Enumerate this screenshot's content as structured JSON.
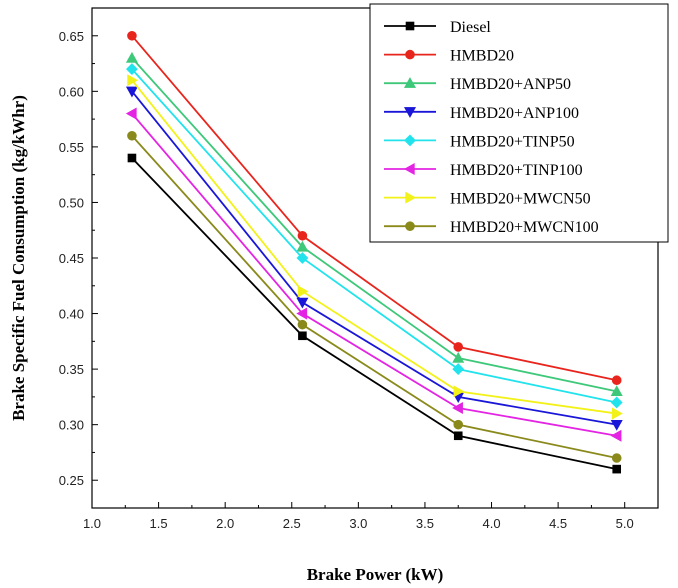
{
  "chart_data": {
    "type": "line",
    "title": "",
    "xlabel": "Brake Power (kW)",
    "ylabel": "Brake Specific Fuel Consumption (kg/kWhr)",
    "xlim": [
      1.0,
      5.25
    ],
    "ylim": [
      0.225,
      0.675
    ],
    "xticks": [
      1.0,
      1.5,
      2.0,
      2.5,
      3.0,
      3.5,
      4.0,
      4.5,
      5.0
    ],
    "xtick_labels": [
      "1.0",
      "1.5",
      "2.0",
      "2.5",
      "3.0",
      "3.5",
      "4.0",
      "4.5",
      "5.0"
    ],
    "yticks": [
      0.25,
      0.3,
      0.35,
      0.4,
      0.45,
      0.5,
      0.55,
      0.6,
      0.65
    ],
    "ytick_labels": [
      "0.25",
      "0.30",
      "0.35",
      "0.40",
      "0.45",
      "0.50",
      "0.55",
      "0.60",
      "0.65"
    ],
    "grid": false,
    "legend_position": "top-right",
    "x": [
      1.3,
      2.58,
      3.75,
      4.94
    ],
    "series": [
      {
        "name": "Diesel",
        "values": [
          0.54,
          0.38,
          0.29,
          0.26
        ],
        "color": "#000000",
        "marker": "square"
      },
      {
        "name": "HMBD20",
        "values": [
          0.65,
          0.47,
          0.37,
          0.34
        ],
        "color": "#e8251d",
        "marker": "circle"
      },
      {
        "name": "HMBD20+ANP50",
        "values": [
          0.63,
          0.46,
          0.36,
          0.33
        ],
        "color": "#3ec87a",
        "marker": "triangle-up"
      },
      {
        "name": "HMBD20+ANP100",
        "values": [
          0.6,
          0.41,
          0.325,
          0.3
        ],
        "color": "#1a16d8",
        "marker": "triangle-down"
      },
      {
        "name": "HMBD20+TINP50",
        "values": [
          0.62,
          0.45,
          0.35,
          0.32
        ],
        "color": "#22e3ec",
        "marker": "diamond"
      },
      {
        "name": "HMBD20+TINP100",
        "values": [
          0.58,
          0.4,
          0.315,
          0.29
        ],
        "color": "#e324e3",
        "marker": "triangle-left"
      },
      {
        "name": "HMBD20+MWCN50",
        "values": [
          0.61,
          0.42,
          0.33,
          0.31
        ],
        "color": "#f2f21a",
        "marker": "triangle-right"
      },
      {
        "name": "HMBD20+MWCN100",
        "values": [
          0.56,
          0.39,
          0.3,
          0.27
        ],
        "color": "#8a8a1c",
        "marker": "circle"
      }
    ]
  }
}
